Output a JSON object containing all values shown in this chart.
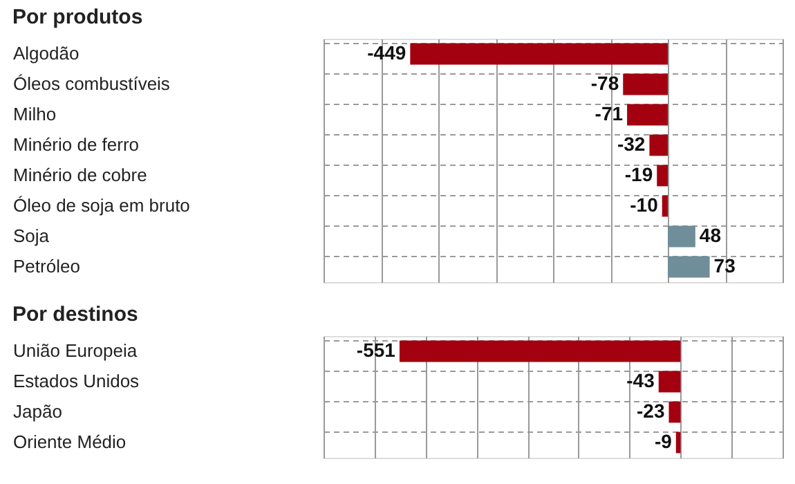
{
  "chart_data": [
    {
      "type": "bar",
      "orientation": "horizontal",
      "title": "Por produtos",
      "categories": [
        "Algodão",
        "Óleos combustíveis",
        "Milho",
        "Minério de ferro",
        "Minério de cobre",
        "Óleo de soja em bruto",
        "Soja",
        "Petróleo"
      ],
      "values": [
        -449,
        -78,
        -71,
        -32,
        -19,
        -10,
        48,
        73
      ],
      "colors": [
        "#a30010",
        "#a30010",
        "#a30010",
        "#a30010",
        "#a30010",
        "#a30010",
        "#6f8e9a",
        "#6f8e9a"
      ],
      "xlim": [
        -600,
        200
      ],
      "xticks": [
        -600,
        -500,
        -400,
        -300,
        -200,
        -100,
        0,
        100,
        200
      ],
      "tick_labels": "y",
      "data_labels": true,
      "grid": true
    },
    {
      "type": "bar",
      "orientation": "horizontal",
      "title": "Por destinos",
      "categories": [
        "União Europeia",
        "Estados Unidos",
        "Japão",
        "Oriente Médio"
      ],
      "values": [
        -551,
        -43,
        -23,
        -9
      ],
      "colors": [
        "#a30010",
        "#a30010",
        "#a30010",
        "#a30010"
      ],
      "xlim": [
        -700,
        200
      ],
      "xticks": [
        -700,
        -600,
        -500,
        -400,
        -300,
        -200,
        -100,
        0,
        100,
        200
      ],
      "tick_labels": "y",
      "data_labels": true,
      "grid": true
    }
  ]
}
